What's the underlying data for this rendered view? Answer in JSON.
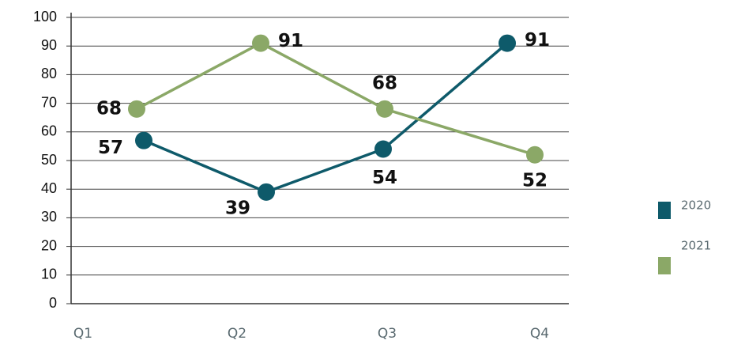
{
  "chart_data": {
    "type": "line",
    "categories": [
      "Q1",
      "Q2",
      "Q3",
      "Q4"
    ],
    "series": [
      {
        "name": "2020",
        "color": "#0e5a6a",
        "values": [
          57,
          39,
          54,
          91
        ]
      },
      {
        "name": "2021",
        "color": "#8ba867",
        "values": [
          68,
          91,
          68,
          52
        ]
      }
    ],
    "ylim": [
      0,
      100
    ],
    "yticks": [
      0,
      10,
      20,
      30,
      40,
      50,
      60,
      70,
      80,
      90,
      100
    ],
    "grid": true,
    "legend": "right"
  }
}
